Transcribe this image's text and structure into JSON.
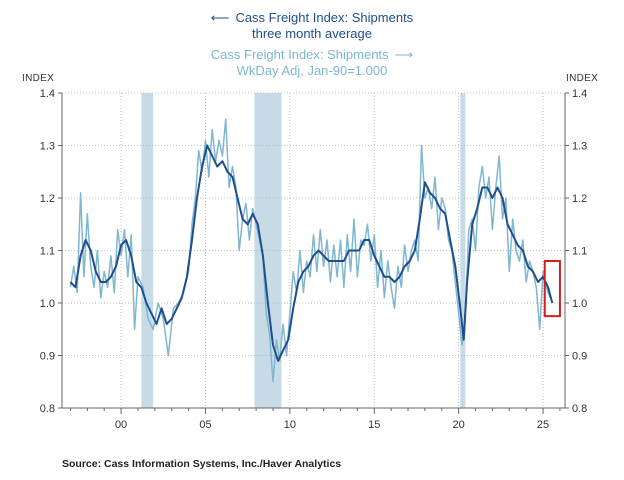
{
  "legend": {
    "primary_line1": "Cass Freight Index: Shipments",
    "primary_line2": "three month average",
    "secondary_line1": "Cass Freight Index: Shipments",
    "secondary_line2": "WkDay Adj, Jan-90=1.000"
  },
  "source": "Source:  Cass Information Systems, Inc./Haver Analytics",
  "colors": {
    "three_month_avg": "#1f4e8c",
    "monthly": "#7fb6d0",
    "recession": "#c7dbe6",
    "highlight_box": "#d42020",
    "axis": "#666666"
  },
  "chart_data": {
    "type": "line",
    "ylabel_left": "INDEX",
    "ylabel_right": "INDEX",
    "ylim": [
      0.8,
      1.4
    ],
    "yticks": [
      0.8,
      0.9,
      1.0,
      1.1,
      1.2,
      1.3,
      1.4
    ],
    "ytick_labels": [
      "0.8",
      "0.9",
      "1.0",
      "1.1",
      "1.2",
      "1.3",
      "1.4"
    ],
    "xlim": [
      1996.5,
      2026.3
    ],
    "xticks": [
      2000,
      2005,
      2010,
      2015,
      2020,
      2025
    ],
    "xtick_labels": [
      "00",
      "05",
      "10",
      "15",
      "20",
      "25"
    ],
    "recessions": [
      [
        2001.2,
        2001.9
      ],
      [
        2007.9,
        2009.5
      ],
      [
        2020.1,
        2020.4
      ]
    ],
    "highlight_box": {
      "x": [
        2025.1,
        2026.0
      ],
      "y": [
        0.975,
        1.08
      ]
    },
    "series": [
      {
        "role": "monthly",
        "points": [
          [
            1997.0,
            1.03
          ],
          [
            1997.2,
            1.07
          ],
          [
            1997.4,
            1.02
          ],
          [
            1997.6,
            1.21
          ],
          [
            1997.8,
            1.05
          ],
          [
            1998.0,
            1.17
          ],
          [
            1998.2,
            1.07
          ],
          [
            1998.4,
            1.03
          ],
          [
            1998.6,
            1.1
          ],
          [
            1998.8,
            1.01
          ],
          [
            1999.0,
            1.06
          ],
          [
            1999.2,
            1.03
          ],
          [
            1999.4,
            1.09
          ],
          [
            1999.6,
            1.02
          ],
          [
            1999.8,
            1.14
          ],
          [
            2000.0,
            1.09
          ],
          [
            2000.2,
            1.14
          ],
          [
            2000.4,
            1.05
          ],
          [
            2000.6,
            1.13
          ],
          [
            2000.8,
            0.95
          ],
          [
            2001.0,
            1.05
          ],
          [
            2001.3,
            1.03
          ],
          [
            2001.6,
            0.97
          ],
          [
            2001.9,
            0.95
          ],
          [
            2002.2,
            1.0
          ],
          [
            2002.5,
            0.97
          ],
          [
            2002.8,
            0.9
          ],
          [
            2003.1,
            0.99
          ],
          [
            2003.4,
            1.0
          ],
          [
            2003.7,
            1.02
          ],
          [
            2004.0,
            1.06
          ],
          [
            2004.2,
            1.15
          ],
          [
            2004.4,
            1.2
          ],
          [
            2004.6,
            1.29
          ],
          [
            2004.8,
            1.25
          ],
          [
            2005.0,
            1.31
          ],
          [
            2005.2,
            1.24
          ],
          [
            2005.4,
            1.33
          ],
          [
            2005.6,
            1.27
          ],
          [
            2005.8,
            1.31
          ],
          [
            2006.0,
            1.28
          ],
          [
            2006.2,
            1.35
          ],
          [
            2006.4,
            1.22
          ],
          [
            2006.6,
            1.26
          ],
          [
            2006.8,
            1.22
          ],
          [
            2007.0,
            1.1
          ],
          [
            2007.2,
            1.16
          ],
          [
            2007.4,
            1.19
          ],
          [
            2007.6,
            1.12
          ],
          [
            2007.8,
            1.18
          ],
          [
            2008.0,
            1.15
          ],
          [
            2008.2,
            1.12
          ],
          [
            2008.4,
            1.09
          ],
          [
            2008.6,
            0.98
          ],
          [
            2008.8,
            0.94
          ],
          [
            2009.0,
            0.85
          ],
          [
            2009.2,
            0.93
          ],
          [
            2009.4,
            0.89
          ],
          [
            2009.6,
            0.96
          ],
          [
            2009.8,
            0.9
          ],
          [
            2010.0,
            0.98
          ],
          [
            2010.2,
            1.06
          ],
          [
            2010.4,
            1.02
          ],
          [
            2010.6,
            1.1
          ],
          [
            2010.8,
            1.02
          ],
          [
            2011.0,
            1.08
          ],
          [
            2011.2,
            1.05
          ],
          [
            2011.4,
            1.13
          ],
          [
            2011.6,
            1.06
          ],
          [
            2011.8,
            1.14
          ],
          [
            2012.0,
            1.07
          ],
          [
            2012.2,
            1.12
          ],
          [
            2012.4,
            1.04
          ],
          [
            2012.6,
            1.11
          ],
          [
            2012.8,
            1.05
          ],
          [
            2013.0,
            1.12
          ],
          [
            2013.2,
            1.03
          ],
          [
            2013.4,
            1.13
          ],
          [
            2013.6,
            1.06
          ],
          [
            2013.8,
            1.16
          ],
          [
            2014.0,
            1.05
          ],
          [
            2014.2,
            1.12
          ],
          [
            2014.4,
            1.11
          ],
          [
            2014.6,
            1.15
          ],
          [
            2014.8,
            1.08
          ],
          [
            2015.0,
            1.13
          ],
          [
            2015.2,
            1.03
          ],
          [
            2015.4,
            1.1
          ],
          [
            2015.6,
            1.01
          ],
          [
            2015.8,
            1.08
          ],
          [
            2016.0,
            1.03
          ],
          [
            2016.2,
            0.99
          ],
          [
            2016.4,
            1.07
          ],
          [
            2016.6,
            1.03
          ],
          [
            2016.8,
            1.11
          ],
          [
            2017.0,
            1.06
          ],
          [
            2017.2,
            1.1
          ],
          [
            2017.4,
            1.12
          ],
          [
            2017.6,
            1.08
          ],
          [
            2017.8,
            1.3
          ],
          [
            2018.0,
            1.2
          ],
          [
            2018.2,
            1.22
          ],
          [
            2018.4,
            1.18
          ],
          [
            2018.6,
            1.24
          ],
          [
            2018.8,
            1.14
          ],
          [
            2019.0,
            1.2
          ],
          [
            2019.2,
            1.18
          ],
          [
            2019.4,
            1.12
          ],
          [
            2019.6,
            1.1
          ],
          [
            2019.8,
            1.04
          ],
          [
            2020.0,
            0.98
          ],
          [
            2020.2,
            0.92
          ],
          [
            2020.4,
            0.98
          ],
          [
            2020.6,
            1.14
          ],
          [
            2020.8,
            1.16
          ],
          [
            2021.0,
            1.1
          ],
          [
            2021.2,
            1.22
          ],
          [
            2021.4,
            1.26
          ],
          [
            2021.6,
            1.2
          ],
          [
            2021.8,
            1.24
          ],
          [
            2022.0,
            1.14
          ],
          [
            2022.2,
            1.22
          ],
          [
            2022.4,
            1.28
          ],
          [
            2022.6,
            1.16
          ],
          [
            2022.8,
            1.2
          ],
          [
            2023.0,
            1.06
          ],
          [
            2023.2,
            1.16
          ],
          [
            2023.4,
            1.1
          ],
          [
            2023.6,
            1.08
          ],
          [
            2023.8,
            1.12
          ],
          [
            2024.0,
            1.04
          ],
          [
            2024.2,
            1.08
          ],
          [
            2024.4,
            1.06
          ],
          [
            2024.6,
            1.03
          ],
          [
            2024.8,
            0.95
          ],
          [
            2025.0,
            1.06
          ],
          [
            2025.2,
            1.03
          ],
          [
            2025.4,
            1.01
          ]
        ]
      },
      {
        "role": "three_month_avg",
        "points": [
          [
            1997.0,
            1.04
          ],
          [
            1997.3,
            1.03
          ],
          [
            1997.6,
            1.09
          ],
          [
            1997.9,
            1.12
          ],
          [
            1998.2,
            1.1
          ],
          [
            1998.5,
            1.06
          ],
          [
            1998.8,
            1.04
          ],
          [
            1999.1,
            1.04
          ],
          [
            1999.4,
            1.05
          ],
          [
            1999.7,
            1.07
          ],
          [
            2000.0,
            1.11
          ],
          [
            2000.3,
            1.12
          ],
          [
            2000.6,
            1.09
          ],
          [
            2000.9,
            1.04
          ],
          [
            2001.2,
            1.03
          ],
          [
            2001.5,
            1.0
          ],
          [
            2001.8,
            0.98
          ],
          [
            2002.1,
            0.96
          ],
          [
            2002.4,
            0.99
          ],
          [
            2002.7,
            0.96
          ],
          [
            2003.0,
            0.97
          ],
          [
            2003.3,
            0.99
          ],
          [
            2003.6,
            1.01
          ],
          [
            2003.9,
            1.05
          ],
          [
            2004.2,
            1.12
          ],
          [
            2004.5,
            1.2
          ],
          [
            2004.8,
            1.26
          ],
          [
            2005.1,
            1.3
          ],
          [
            2005.4,
            1.28
          ],
          [
            2005.7,
            1.26
          ],
          [
            2006.0,
            1.27
          ],
          [
            2006.3,
            1.25
          ],
          [
            2006.6,
            1.24
          ],
          [
            2006.9,
            1.2
          ],
          [
            2007.2,
            1.16
          ],
          [
            2007.5,
            1.15
          ],
          [
            2007.8,
            1.17
          ],
          [
            2008.1,
            1.15
          ],
          [
            2008.4,
            1.09
          ],
          [
            2008.7,
            1.0
          ],
          [
            2009.0,
            0.92
          ],
          [
            2009.3,
            0.89
          ],
          [
            2009.6,
            0.91
          ],
          [
            2009.9,
            0.93
          ],
          [
            2010.2,
            0.99
          ],
          [
            2010.5,
            1.04
          ],
          [
            2010.8,
            1.06
          ],
          [
            2011.1,
            1.07
          ],
          [
            2011.4,
            1.09
          ],
          [
            2011.7,
            1.1
          ],
          [
            2012.0,
            1.09
          ],
          [
            2012.3,
            1.08
          ],
          [
            2012.6,
            1.08
          ],
          [
            2012.9,
            1.08
          ],
          [
            2013.2,
            1.08
          ],
          [
            2013.5,
            1.1
          ],
          [
            2013.8,
            1.1
          ],
          [
            2014.1,
            1.1
          ],
          [
            2014.4,
            1.12
          ],
          [
            2014.7,
            1.12
          ],
          [
            2015.0,
            1.09
          ],
          [
            2015.3,
            1.07
          ],
          [
            2015.6,
            1.05
          ],
          [
            2015.9,
            1.05
          ],
          [
            2016.2,
            1.04
          ],
          [
            2016.5,
            1.05
          ],
          [
            2016.8,
            1.07
          ],
          [
            2017.1,
            1.08
          ],
          [
            2017.4,
            1.1
          ],
          [
            2017.7,
            1.16
          ],
          [
            2018.0,
            1.23
          ],
          [
            2018.3,
            1.21
          ],
          [
            2018.6,
            1.2
          ],
          [
            2018.9,
            1.18
          ],
          [
            2019.2,
            1.17
          ],
          [
            2019.5,
            1.12
          ],
          [
            2019.8,
            1.07
          ],
          [
            2020.1,
            0.99
          ],
          [
            2020.3,
            0.93
          ],
          [
            2020.5,
            1.04
          ],
          [
            2020.8,
            1.15
          ],
          [
            2021.1,
            1.18
          ],
          [
            2021.4,
            1.22
          ],
          [
            2021.7,
            1.22
          ],
          [
            2022.0,
            1.2
          ],
          [
            2022.3,
            1.22
          ],
          [
            2022.6,
            1.2
          ],
          [
            2022.9,
            1.15
          ],
          [
            2023.2,
            1.13
          ],
          [
            2023.5,
            1.11
          ],
          [
            2023.8,
            1.1
          ],
          [
            2024.1,
            1.07
          ],
          [
            2024.4,
            1.06
          ],
          [
            2024.7,
            1.04
          ],
          [
            2025.0,
            1.05
          ],
          [
            2025.3,
            1.03
          ],
          [
            2025.55,
            1.0
          ]
        ]
      }
    ]
  }
}
